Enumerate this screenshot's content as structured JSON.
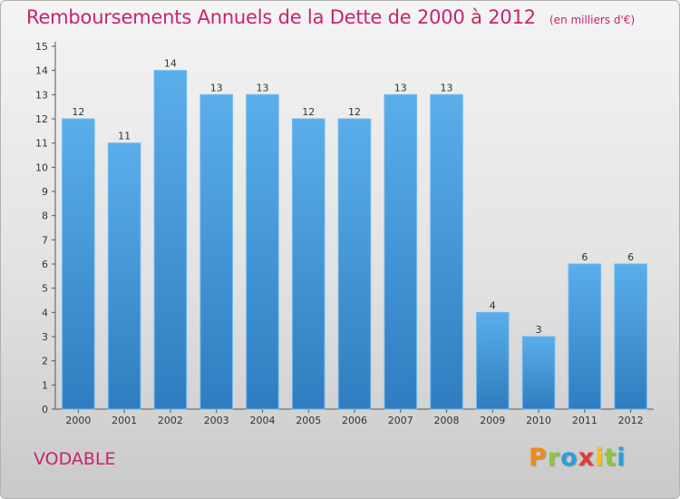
{
  "chart_data": {
    "type": "bar",
    "title": "Remboursements Annuels de la Dette de 2000 à 2012",
    "subtitle": "(en milliers d'€)",
    "categories": [
      "2000",
      "2001",
      "2002",
      "2003",
      "2004",
      "2005",
      "2006",
      "2007",
      "2008",
      "2009",
      "2010",
      "2011",
      "2012"
    ],
    "values": [
      12,
      11,
      14,
      13,
      13,
      12,
      12,
      13,
      13,
      4,
      3,
      6,
      6
    ],
    "ylim": [
      0,
      15
    ],
    "yticks": [
      "0",
      "1",
      "2",
      "3",
      "4",
      "5",
      "6",
      "7",
      "8",
      "9",
      "10",
      "11",
      "12",
      "13",
      "14",
      "15"
    ],
    "xlabel": "",
    "ylabel": "",
    "grid": false,
    "bar_color": "#3f8fd2",
    "title_color": "#c8236f"
  },
  "footer": {
    "commune": "VODABLE",
    "brand_letters": [
      {
        "char": "P",
        "color": "#f08a1c"
      },
      {
        "char": "r",
        "color": "#8cc63e"
      },
      {
        "char": "o",
        "color": "#2a9fd8"
      },
      {
        "char": "x",
        "color": "#e03a3a"
      },
      {
        "char": "i",
        "color": "#f4c21b"
      },
      {
        "char": "t",
        "color": "#8cc63e"
      },
      {
        "char": "i",
        "color": "#2a9fd8"
      }
    ]
  }
}
